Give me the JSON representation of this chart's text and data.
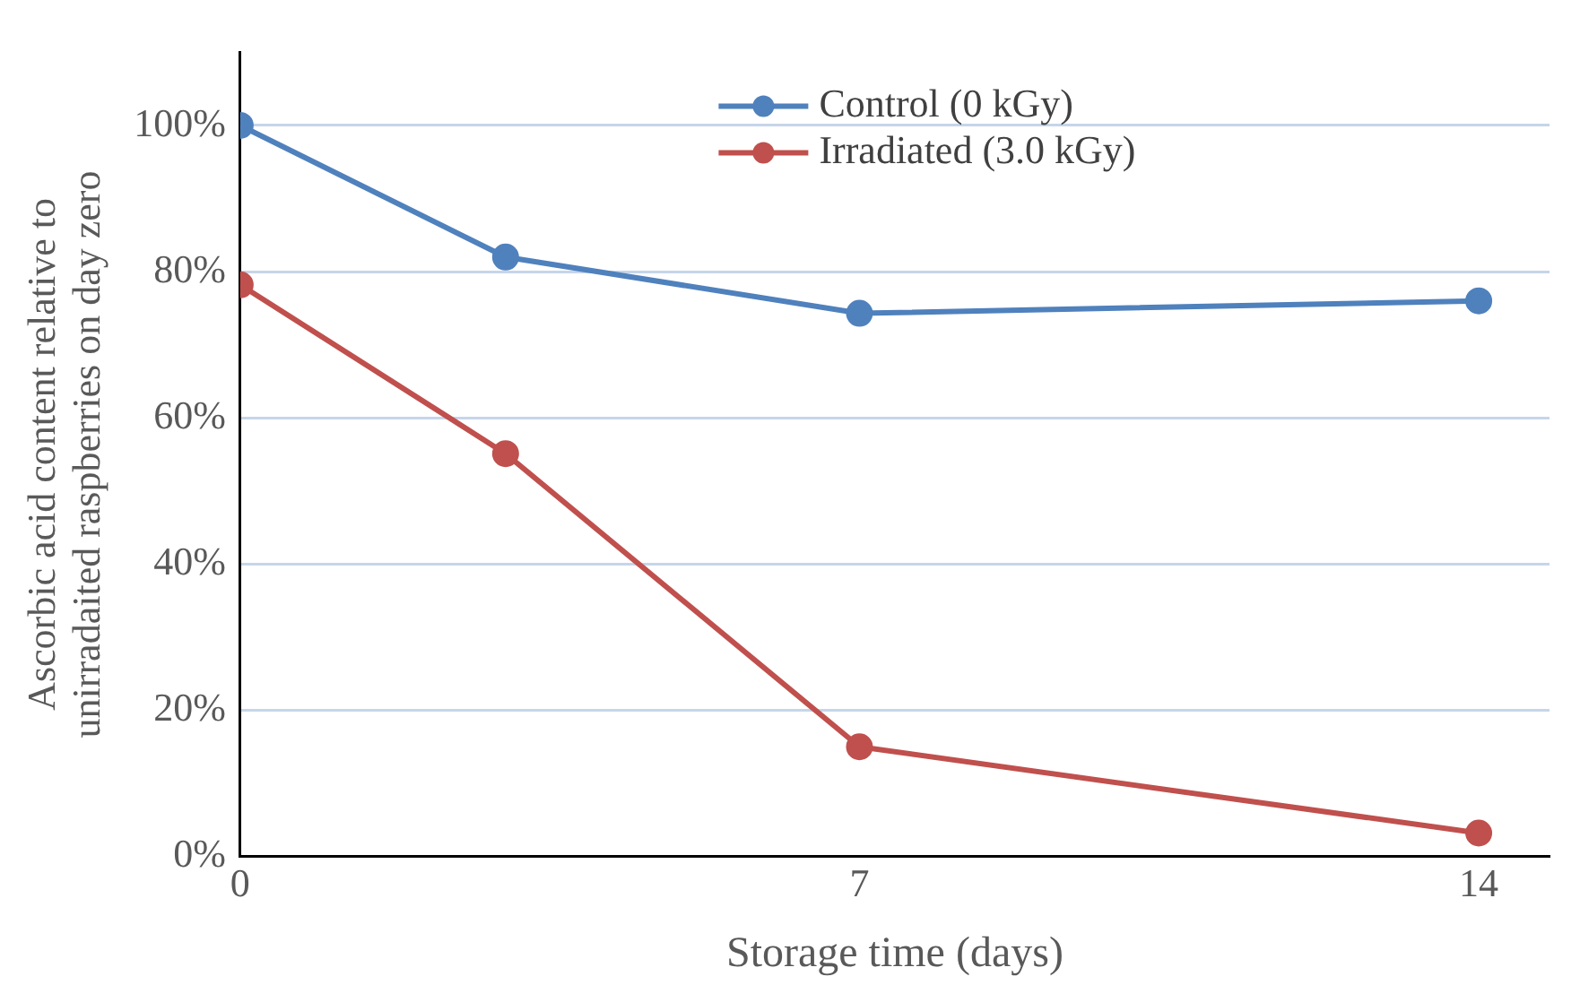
{
  "chart_data": {
    "type": "line",
    "xlabel": "Storage time (days)",
    "ylabel": "Ascorbic acid content relative to unirradaited raspberries on day zero",
    "x": [
      0,
      3,
      7,
      14
    ],
    "series": [
      {
        "name": "Control (0 kGy)",
        "color": "#4f81bd",
        "values": [
          100,
          82,
          74.3,
          76
        ]
      },
      {
        "name": "Irradiated (3.0 kGy)",
        "color": "#c0504d",
        "values": [
          78.2,
          55.1,
          15,
          3.2
        ]
      }
    ],
    "xlim": [
      0,
      14.8
    ],
    "xticks": [
      0,
      7,
      14
    ],
    "ylim": [
      0,
      110
    ],
    "yticks": [
      {
        "value": 0,
        "label": "0%"
      },
      {
        "value": 20,
        "label": "20%"
      },
      {
        "value": 40,
        "label": "40%"
      },
      {
        "value": 60,
        "label": "60%"
      },
      {
        "value": 80,
        "label": "80%"
      },
      {
        "value": 100,
        "label": "100%"
      }
    ],
    "grid": "y",
    "legend": "top",
    "marker": "circle",
    "line_style": "solid"
  }
}
